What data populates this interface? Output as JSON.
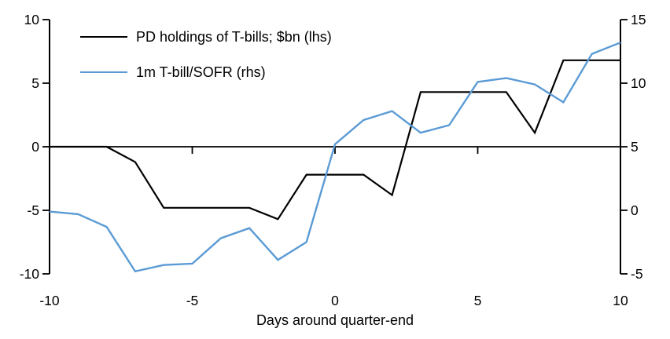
{
  "chart_data": {
    "type": "line",
    "title": "",
    "xlabel": "Days around quarter-end",
    "grid": false,
    "legend_position": "top-left",
    "x": [
      -10,
      -9,
      -8,
      -7,
      -6,
      -5,
      -4,
      -3,
      -2,
      -1,
      0,
      1,
      2,
      3,
      4,
      5,
      6,
      7,
      8,
      9,
      10
    ],
    "series": [
      {
        "name": "PD holdings of T-bills; $bn (lhs)",
        "axis": "left",
        "color": "#000000",
        "stroke_width": 2.2,
        "values": [
          0,
          0,
          0,
          -1.2,
          -4.8,
          -4.8,
          -4.8,
          -4.8,
          -5.7,
          -2.2,
          -2.2,
          -2.2,
          -3.8,
          4.3,
          4.3,
          4.3,
          4.3,
          1.1,
          6.8,
          6.8,
          6.8
        ]
      },
      {
        "name": "1m T-bill/SOFR (rhs)",
        "axis": "right",
        "color": "#5b9bd5",
        "stroke_width": 2.4,
        "values": [
          -0.1,
          -0.3,
          -1.3,
          -4.8,
          -4.3,
          -4.2,
          -2.2,
          -1.4,
          -3.9,
          -2.5,
          5.2,
          7.1,
          7.8,
          6.1,
          6.7,
          10.1,
          10.4,
          9.9,
          8.5,
          12.3,
          13.2
        ]
      }
    ],
    "axes": {
      "left": {
        "range": [
          -10,
          10
        ],
        "ticks": [
          10,
          5,
          0,
          -5,
          -10
        ]
      },
      "right": {
        "range": [
          -5,
          15
        ],
        "ticks": [
          15,
          10,
          5,
          0,
          -5
        ]
      },
      "x": {
        "range": [
          -10,
          10
        ],
        "ticks": [
          -10,
          -5,
          0,
          5,
          10
        ]
      }
    },
    "axis_color": "#000000"
  }
}
